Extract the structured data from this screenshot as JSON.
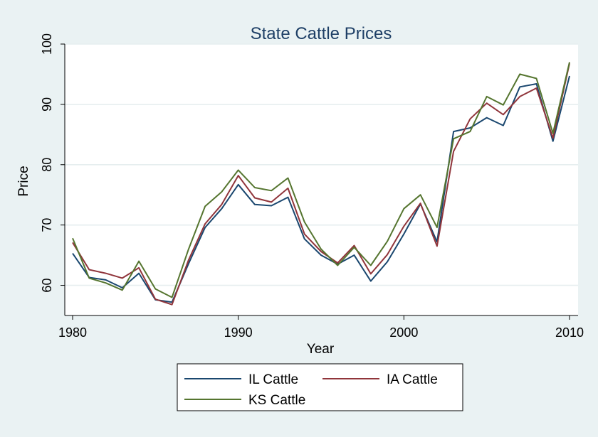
{
  "chart_data": {
    "type": "line",
    "title": "State Cattle Prices",
    "xlabel": "Year",
    "ylabel": "Price",
    "xlim": [
      1980,
      2010
    ],
    "ylim": [
      55,
      100
    ],
    "xticks": [
      1980,
      1990,
      2000,
      2010
    ],
    "yticks": [
      60,
      70,
      80,
      90,
      100
    ],
    "grid": true,
    "legend_position": "bottom",
    "x": [
      1980,
      1981,
      1982,
      1983,
      1984,
      1985,
      1986,
      1987,
      1988,
      1989,
      1990,
      1991,
      1992,
      1993,
      1994,
      1995,
      1996,
      1997,
      1998,
      1999,
      2000,
      2001,
      2002,
      2003,
      2004,
      2005,
      2006,
      2007,
      2008,
      2009,
      2010
    ],
    "series": [
      {
        "name": "IL Cattle",
        "color": "#1a476f",
        "values": [
          65.3,
          61.3,
          60.9,
          59.6,
          62.0,
          57.6,
          57.2,
          63.6,
          69.6,
          72.7,
          76.7,
          73.4,
          73.2,
          74.6,
          67.7,
          65.0,
          63.5,
          65.0,
          60.7,
          63.9,
          68.5,
          73.5,
          67.2,
          85.5,
          86.1,
          87.8,
          86.5,
          92.9,
          93.4,
          83.9,
          94.7
        ]
      },
      {
        "name": "IA Cattle",
        "color": "#90353b",
        "values": [
          67.1,
          62.6,
          62.0,
          61.2,
          62.9,
          57.7,
          56.8,
          64.2,
          70.2,
          73.4,
          78.2,
          74.5,
          73.8,
          76.1,
          68.5,
          65.6,
          63.7,
          66.6,
          61.9,
          65.1,
          69.8,
          73.6,
          66.5,
          82.2,
          87.6,
          90.2,
          88.3,
          91.3,
          92.7,
          84.4,
          96.8
        ]
      },
      {
        "name": "KS Cattle",
        "color": "#55752f",
        "values": [
          67.8,
          61.2,
          60.4,
          59.2,
          64.0,
          59.4,
          58.0,
          66.0,
          73.1,
          75.5,
          79.1,
          76.2,
          75.7,
          77.8,
          70.5,
          66.0,
          63.3,
          66.3,
          63.3,
          67.3,
          72.7,
          75.0,
          69.6,
          84.3,
          85.5,
          91.3,
          89.9,
          95.0,
          94.3,
          85.2,
          97.0
        ]
      }
    ]
  }
}
